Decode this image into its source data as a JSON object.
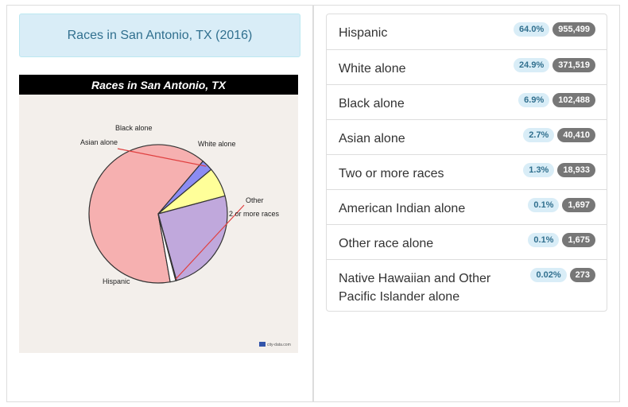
{
  "title": "Races in San Antonio, TX (2016)",
  "chart_data": {
    "type": "pie",
    "title": "Races in San Antonio, TX",
    "watermark": "city-data.com",
    "slices": [
      {
        "name": "Hispanic",
        "label": "Hispanic",
        "value": 64.0,
        "color": "#f6b0b0"
      },
      {
        "name": "Asian alone",
        "label": "Asian alone",
        "value": 2.7,
        "color": "#8c8cf2"
      },
      {
        "name": "Black alone",
        "label": "Black alone",
        "value": 6.9,
        "color": "#ffff99"
      },
      {
        "name": "White alone",
        "label": "White alone",
        "value": 24.9,
        "color": "#c0a8dc"
      },
      {
        "name": "Other",
        "label": "Other",
        "value": 0.2,
        "color": "#ff6a6a"
      },
      {
        "name": "2 or more races",
        "label": "2 or more races",
        "value": 1.3,
        "color": "#ffffff"
      }
    ]
  },
  "list": [
    {
      "label": "Hispanic",
      "pct": "64.0%",
      "count": "955,499"
    },
    {
      "label": "White alone",
      "pct": "24.9%",
      "count": "371,519"
    },
    {
      "label": "Black alone",
      "pct": "6.9%",
      "count": "102,488"
    },
    {
      "label": "Asian alone",
      "pct": "2.7%",
      "count": "40,410"
    },
    {
      "label": "Two or more races",
      "pct": "1.3%",
      "count": "18,933"
    },
    {
      "label": "American Indian alone",
      "pct": "0.1%",
      "count": "1,697"
    },
    {
      "label": "Other race alone",
      "pct": "0.1%",
      "count": "1,675"
    },
    {
      "label": "Native Hawaiian and Other Pacific Islander alone",
      "pct": "0.02%",
      "count": "273"
    }
  ]
}
